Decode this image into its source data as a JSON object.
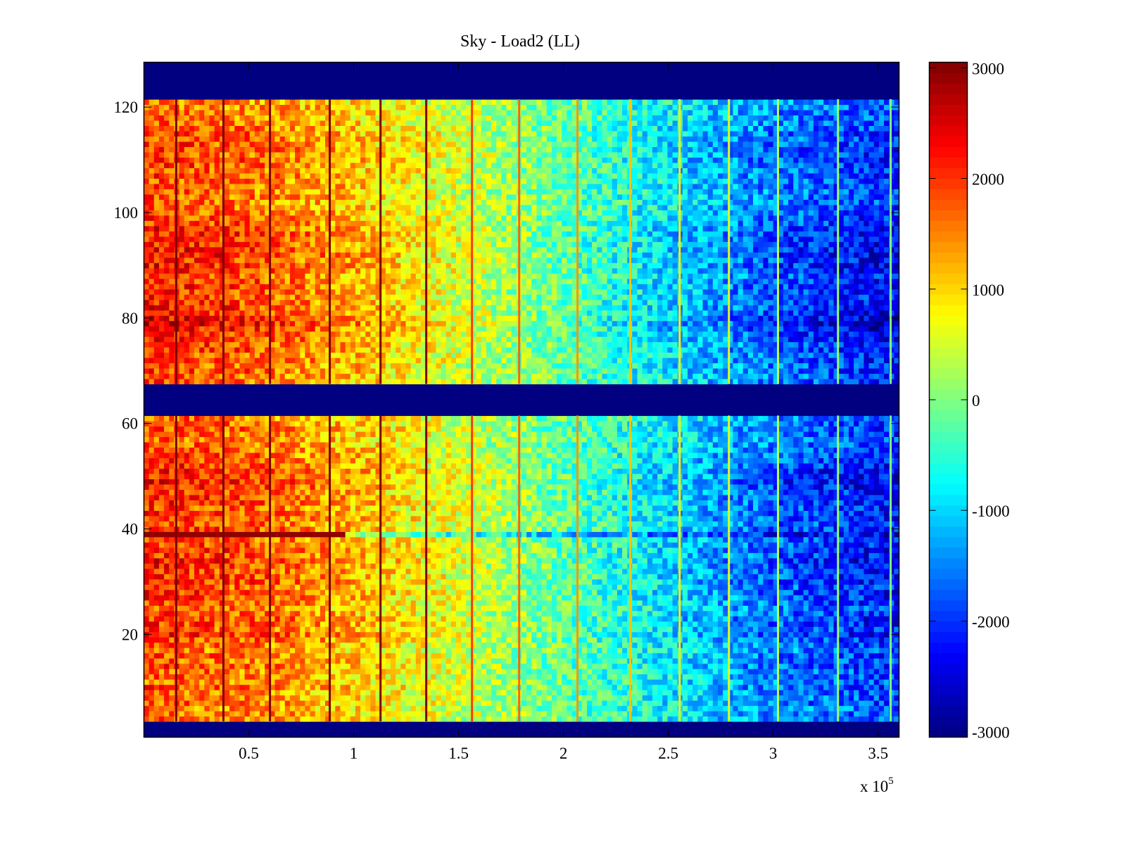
{
  "chart_data": {
    "type": "heatmap",
    "title": "Sky - Load2 (LL)",
    "xlabel": "",
    "ylabel": "",
    "x_exponent_label": "x 10",
    "x_exponent": "5",
    "xlim": [
      0,
      360000
    ],
    "ylim": [
      0.5,
      128.5
    ],
    "xticks": [
      50000,
      100000,
      150000,
      200000,
      250000,
      300000,
      350000
    ],
    "xtick_labels": [
      "0.5",
      "1",
      "1.5",
      "2",
      "2.5",
      "3",
      "3.5"
    ],
    "yticks": [
      20,
      40,
      60,
      80,
      100,
      120
    ],
    "ytick_labels": [
      "20",
      "40",
      "60",
      "80",
      "100",
      "120"
    ],
    "colormap": "jet",
    "clim": [
      -3050,
      3050
    ],
    "colorbar": {
      "ticks": [
        3000,
        2000,
        1000,
        0,
        -1000,
        -2000,
        -3000
      ],
      "tick_labels": [
        "3000",
        "2000",
        "1000",
        "0",
        "-1000",
        "-2000",
        "-3000"
      ],
      "placement": "right"
    },
    "rows": 128,
    "columns": 150,
    "column_profile": {
      "x": [
        0,
        50000,
        100000,
        150000,
        200000,
        250000,
        300000,
        360000
      ],
      "value": [
        1500,
        1300,
        900,
        400,
        -150,
        -700,
        -1250,
        -1650
      ]
    },
    "row_modulation": [
      0,
      0,
      0,
      0.1,
      0.15,
      0.05,
      0.2,
      0.1,
      0.15,
      0.25,
      0.1,
      0.2,
      0.15,
      0.3,
      0.2,
      0.25,
      0.1,
      0.2,
      0.3,
      0.45,
      0.25,
      0.35,
      0.4,
      0.3,
      0.2,
      0.3,
      0.35,
      0.4,
      0.3,
      0.45,
      0.4,
      0.35,
      0.45,
      0.5,
      0.4,
      0.45,
      0.35,
      0.3,
      0,
      0.35,
      0.3,
      0.4,
      0.35,
      0.3,
      0.4,
      0.45,
      0.35,
      0.5,
      0.55,
      0.45,
      0.5,
      0.4,
      0.35,
      0.3,
      0.25,
      0.2,
      0.15,
      0.2,
      0.25,
      0.2,
      0.15,
      0,
      0,
      0,
      0,
      0,
      0,
      0.25,
      0.2,
      0.3,
      0.25,
      0.35,
      0.3,
      0.4,
      0.35,
      0.45,
      0.5,
      0.6,
      0.7,
      0.6,
      0.5,
      0.45,
      0.4,
      0.35,
      0.4,
      0.45,
      0.4,
      0.35,
      0.45,
      0.5,
      0.45,
      0.55,
      0.5,
      0.45,
      0.4,
      0.5,
      0.45,
      0.35,
      0.3,
      0.25,
      0.2,
      0.15,
      0.2,
      0.15,
      0.25,
      0.2,
      0.3,
      0.25,
      0.3,
      0.35,
      0.3,
      0.35,
      0.3,
      0.25,
      0.3,
      0.2,
      0.15,
      0.1,
      0.15,
      0.1,
      0.05,
      0,
      0,
      0,
      0,
      0,
      0,
      0
    ],
    "masked_rows": [
      1,
      2,
      3,
      62,
      63,
      64,
      65,
      66,
      67,
      122,
      123,
      124,
      125,
      126,
      127,
      128
    ],
    "masked_value": -3050,
    "special_rows": [
      {
        "row": 39,
        "x_break": 95000,
        "left_value": 2950,
        "right_offset": -900
      }
    ],
    "vertical_stripes": {
      "x": [
        15400,
        37900,
        60100,
        88600,
        112800,
        134600,
        156400,
        178900,
        206700,
        231900,
        255400,
        278900,
        302300,
        330900,
        356000
      ],
      "offset": 1600
    },
    "noise_amplitude": 650
  }
}
